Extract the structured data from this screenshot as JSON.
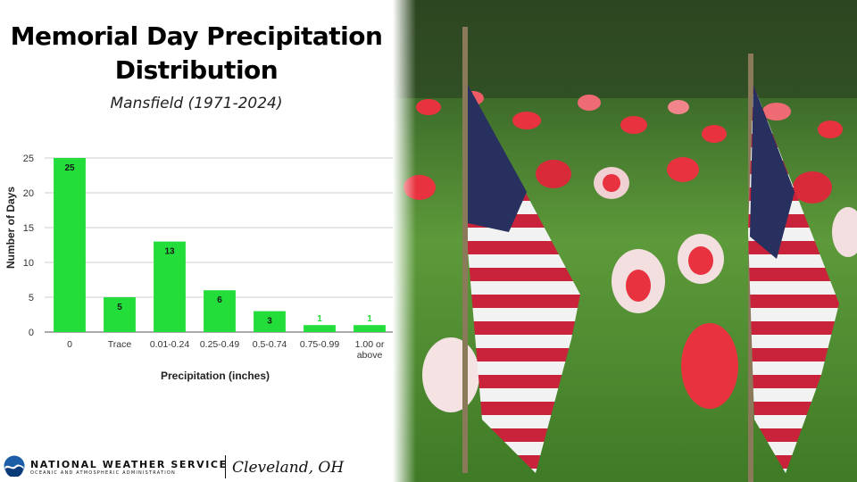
{
  "title_lines": [
    "Memorial Day Precipitation",
    "Distribution"
  ],
  "subtitle": "Mansfield (1971-2024)",
  "chart_data": {
    "type": "bar",
    "categories": [
      "0",
      "Trace",
      "0.01-0.24",
      "0.25-0.49",
      "0.5-0.74",
      "0.75-0.99",
      "1.00 or above"
    ],
    "values": [
      25,
      5,
      13,
      6,
      3,
      1,
      1
    ],
    "xlabel": "Precipitation (inches)",
    "ylabel": "Number of Days",
    "ylim": [
      0,
      25
    ],
    "yticks": [
      0,
      5,
      10,
      15,
      20,
      25
    ],
    "grid": true,
    "bar_color": "#22dd3a"
  },
  "footer": {
    "org_name": "NATIONAL WEATHER SERVICE",
    "org_sub": "OCEANIC AND ATMOSPHERIC ADMINISTRATION",
    "office": "Cleveland, OH"
  },
  "photo": {
    "subject": "american-flags-and-flowers-in-grass",
    "colors": {
      "grass": "#4f8a2e",
      "flower_red": "#e8323f",
      "flag_red": "#c8233a",
      "flag_blue": "#27305e"
    }
  }
}
